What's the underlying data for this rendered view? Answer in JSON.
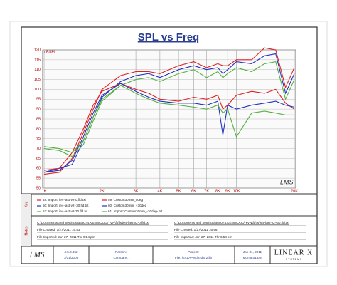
{
  "chart_data": {
    "type": "line",
    "title": "SPL vs Freq",
    "y_label": "dBSPL",
    "watermark": "LMS",
    "xscale": "log",
    "grid": true,
    "x": [
      1000,
      1200,
      1400,
      1600,
      1800,
      2000,
      2500,
      3000,
      3500,
      4000,
      5000,
      6000,
      7000,
      8000,
      8500,
      9000,
      10000,
      12000,
      14000,
      16000,
      18000,
      20000
    ],
    "xlim": [
      1000,
      20000
    ],
    "xticks": [
      {
        "value": 1000,
        "label": "1K"
      },
      {
        "value": 2000,
        "label": "2K"
      },
      {
        "value": 3000,
        "label": "3K"
      },
      {
        "value": 4000,
        "label": "4K"
      },
      {
        "value": 5000,
        "label": "5K"
      },
      {
        "value": 6000,
        "label": "6K"
      },
      {
        "value": 7000,
        "label": "7K"
      },
      {
        "value": 8000,
        "label": "8K"
      },
      {
        "value": 9000,
        "label": "9K"
      },
      {
        "value": 10000,
        "label": "10K"
      },
      {
        "value": 20000,
        "label": "20K"
      }
    ],
    "ylim": [
      50,
      120
    ],
    "yticks": [
      50,
      55,
      60,
      65,
      70,
      75,
      80,
      85,
      90,
      95,
      100,
      105,
      110,
      115,
      120
    ],
    "series": [
      {
        "name": "48: Import: ie4-last-v2-0.fld.txt",
        "color": "#e02020",
        "values": [
          57,
          58,
          65,
          78,
          90,
          100,
          107,
          109,
          109,
          108,
          112,
          114,
          111,
          113,
          112,
          112,
          115,
          115,
          121,
          120,
          101,
          111
        ]
      },
      {
        "name": "50: Import: ie4-last-v2+30.fld.txt",
        "color": "#2233c0",
        "values": [
          58,
          60,
          62,
          74,
          86,
          96,
          104,
          107,
          108,
          106,
          110,
          112,
          110,
          111,
          108,
          110,
          114,
          113,
          117,
          118,
          98,
          108
        ]
      },
      {
        "name": "53: Import: ie4-last-v2-30.fld.txt",
        "color": "#55b040",
        "values": [
          70,
          69,
          66,
          72,
          84,
          94,
          102,
          105,
          106,
          104,
          108,
          110,
          106,
          109,
          106,
          108,
          111,
          109,
          113,
          114,
          95,
          105
        ]
      },
      {
        "name": "59: Custom30mm_0deg",
        "color": "#e02020",
        "values": [
          59,
          60,
          68,
          80,
          92,
          99,
          103,
          100,
          98,
          95,
          94,
          96,
          95,
          97,
          90,
          92,
          97,
          99,
          98,
          100,
          93,
          90
        ]
      },
      {
        "name": "60: Custom30mm_+30deg",
        "color": "#2233c0",
        "values": [
          58,
          59,
          64,
          76,
          88,
          97,
          103,
          99,
          96,
          94,
          93,
          93,
          92,
          94,
          77,
          92,
          90,
          92,
          93,
          94,
          92,
          91
        ]
      },
      {
        "name": "61: Import: Custom30mm_-30deg-.txt",
        "color": "#55b040",
        "values": [
          71,
          70,
          68,
          74,
          86,
          95,
          102,
          98,
          95,
          93,
          92,
          91,
          90,
          92,
          88,
          90,
          76,
          88,
          89,
          88,
          87,
          87
        ]
      }
    ]
  },
  "key_panel": {
    "label": "Key"
  },
  "notes": {
    "label": "Notes",
    "columns": [
      [
        "C:\\Documents and Settings\\B65074.KENWOOD\\YVN\\fq\\fs\\ie4-last-v2-0.fld.txt",
        "File Created: 1/27/2011 16:53",
        "File Imported: Jan 27, 2011  Thr  6:54 pm"
      ],
      [
        "C:\\Documents and Settings\\B65074.KENWOOD\\YVN\\fq\\fs\\ie4-last-v2+30.fld.txt",
        "File Created: 1/27/2011 16:56",
        "File Imported: Jan 27, 2011  Thr  6:54 pm"
      ]
    ]
  },
  "footer": {
    "logo": "LMS",
    "version": "4.5.0.352",
    "version_date": "7/01/2005",
    "person": "Person:",
    "company": "Company:",
    "project": "Project:",
    "file": "File: lE4ZA~%dB*dSr2.lib",
    "date": "Jan 31, 2011",
    "time": "Mon  5:01 pm",
    "brand": "LINEAR X",
    "brand_sub": "S Y S T E M S"
  }
}
